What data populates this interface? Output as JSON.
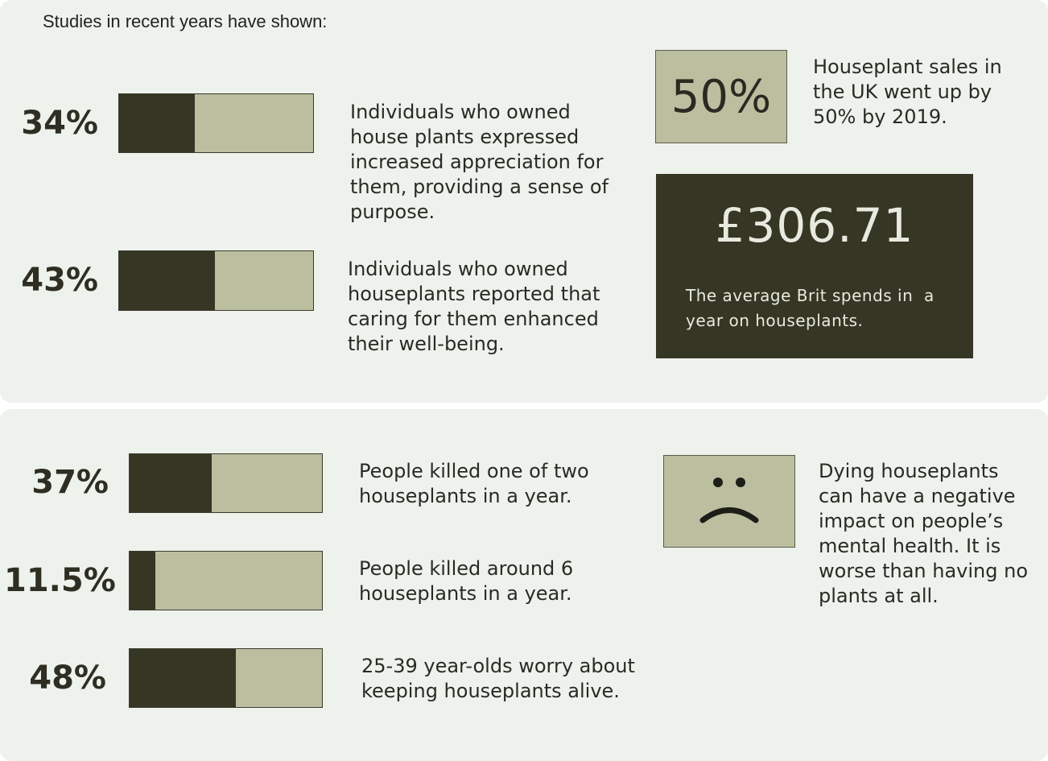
{
  "intro": "Studies in recent years have shown:",
  "stats": [
    {
      "pct": "34%",
      "value": 0.34,
      "text": [
        "Individuals who owned",
        "house plants expressed",
        "increased appreciation for",
        "them, providing a sense of",
        "purpose."
      ]
    },
    {
      "pct": "43%",
      "value": 0.43,
      "text": [
        "Individuals who owned",
        "houseplants reported that",
        "caring for them enhanced",
        "their well-being."
      ]
    },
    {
      "pct": "37%",
      "value": 0.37,
      "text": [
        "People killed one of two",
        "houseplants in a year."
      ]
    },
    {
      "pct": "11.5%",
      "value": 0.115,
      "text": [
        "People killed around 6",
        "houseplants in a year."
      ]
    },
    {
      "pct": "48%",
      "value": 0.48,
      "text": [
        "25-39 year-olds worry about",
        "keeping houseplants alive."
      ]
    }
  ],
  "sales": {
    "pct": "50%",
    "text": [
      "Houseplant sales in",
      "the UK went up by",
      "50% by 2019."
    ]
  },
  "spend": {
    "amount": "£306.71",
    "caption": [
      "The average Brit spends in  a",
      "year on houseplants."
    ]
  },
  "dying": {
    "icon": "sad-face-icon",
    "text": [
      "Dying houseplants",
      "can have a negative",
      "impact on people’s",
      "mental health. It is",
      "worse than having no",
      "plants at all."
    ]
  },
  "colors": {
    "dark": "#363624",
    "light": "#bcbf9f",
    "background": "#eef2ed"
  }
}
